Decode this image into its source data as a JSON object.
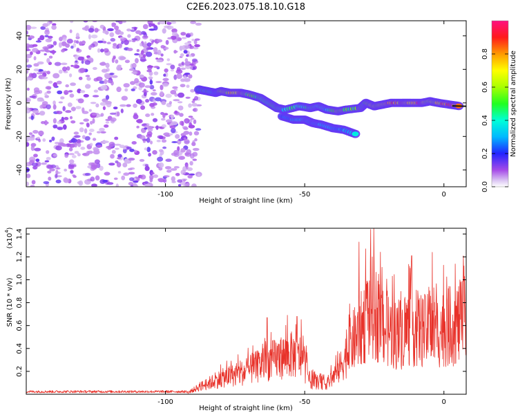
{
  "title": "C2E6.2023.075.18.10.G18",
  "colors": {
    "snr_line": "#e8322a",
    "spectrogram_low": "#8a2be2",
    "spectrogram_high": "#ff2040"
  },
  "chart_data": [
    {
      "type": "heatmap",
      "xlabel": "Height of straight line (km)",
      "ylabel": "Frequency (Hz)",
      "xlim": [
        -150,
        8
      ],
      "ylim": [
        -50,
        49
      ],
      "x_ticks": [
        -100,
        -50,
        0
      ],
      "y_ticks": [
        40,
        20,
        0,
        -20,
        -40
      ],
      "grid": false,
      "ridge": [
        {
          "x": -88,
          "y": 8,
          "v": 0.45
        },
        {
          "x": -85,
          "y": 7,
          "v": 0.5
        },
        {
          "x": -82,
          "y": 6,
          "v": 0.4
        },
        {
          "x": -80,
          "y": 7,
          "v": 0.65
        },
        {
          "x": -77,
          "y": 6,
          "v": 0.7
        },
        {
          "x": -73,
          "y": 6,
          "v": 0.9
        },
        {
          "x": -70,
          "y": 5,
          "v": 0.6
        },
        {
          "x": -66,
          "y": 3,
          "v": 0.45
        },
        {
          "x": -63,
          "y": 0,
          "v": 0.5
        },
        {
          "x": -60,
          "y": -3,
          "v": 0.55
        },
        {
          "x": -57,
          "y": -4,
          "v": 0.4
        },
        {
          "x": -52,
          "y": -2,
          "v": 0.5
        },
        {
          "x": -48,
          "y": -3,
          "v": 0.45
        },
        {
          "x": -45,
          "y": -2,
          "v": 0.5
        },
        {
          "x": -42,
          "y": -4,
          "v": 0.35
        },
        {
          "x": -38,
          "y": -5,
          "v": 0.65
        },
        {
          "x": -35,
          "y": -4,
          "v": 0.55
        },
        {
          "x": -30,
          "y": -3,
          "v": 0.6
        },
        {
          "x": -28,
          "y": 0,
          "v": 0.5
        },
        {
          "x": -25,
          "y": -2,
          "v": 0.7
        },
        {
          "x": -22,
          "y": -1,
          "v": 0.75
        },
        {
          "x": -19,
          "y": 0,
          "v": 0.9
        },
        {
          "x": -15,
          "y": 0,
          "v": 0.85
        },
        {
          "x": -12,
          "y": 0,
          "v": 0.8
        },
        {
          "x": -8,
          "y": 0,
          "v": 0.95
        },
        {
          "x": -5,
          "y": 1,
          "v": 0.7
        },
        {
          "x": -2,
          "y": 0,
          "v": 0.75
        },
        {
          "x": 2,
          "y": -1,
          "v": 0.95
        },
        {
          "x": 6,
          "y": -2,
          "v": 1.0
        }
      ],
      "branch": [
        {
          "x": -58,
          "y": -8,
          "v": 0.3
        },
        {
          "x": -54,
          "y": -10,
          "v": 0.3
        },
        {
          "x": -50,
          "y": -10,
          "v": 0.35
        },
        {
          "x": -47,
          "y": -12,
          "v": 0.3
        },
        {
          "x": -44,
          "y": -13,
          "v": 0.35
        },
        {
          "x": -40,
          "y": -15,
          "v": 0.3
        },
        {
          "x": -36,
          "y": -16,
          "v": 0.3
        },
        {
          "x": -31,
          "y": -19,
          "v": 0.4
        }
      ],
      "colorbar": {
        "label": "Normalized spectral amplitude",
        "range": [
          0.0,
          1.0
        ],
        "ticks": [
          0.0,
          0.2,
          0.4,
          0.6,
          0.8
        ]
      }
    },
    {
      "type": "line",
      "xlabel": "Height of straight line (km)",
      "ylabel": "SNR (10 * v/v)",
      "scale_note": "(x10",
      "scale_exp": "4",
      "scale_close": ")",
      "xlim": [
        -150,
        8
      ],
      "ylim": [
        0,
        1.45
      ],
      "x_ticks": [
        -100,
        -50,
        0
      ],
      "y_ticks": [
        0.2,
        0.4,
        0.6,
        0.8,
        1.0,
        1.2,
        1.4
      ],
      "y_tick_labels": [
        "0.2",
        "0.4",
        "0.6",
        "0.8",
        "1.0",
        "1.2",
        "1.4"
      ],
      "grid": false,
      "envelope": [
        {
          "x": -150,
          "y": 0.02
        },
        {
          "x": -92,
          "y": 0.02
        },
        {
          "x": -88,
          "y": 0.1
        },
        {
          "x": -80,
          "y": 0.22
        },
        {
          "x": -72,
          "y": 0.3
        },
        {
          "x": -65,
          "y": 0.42
        },
        {
          "x": -60,
          "y": 0.5
        },
        {
          "x": -55,
          "y": 0.55
        },
        {
          "x": -51,
          "y": 0.52
        },
        {
          "x": -48,
          "y": 0.18
        },
        {
          "x": -42,
          "y": 0.15
        },
        {
          "x": -38,
          "y": 0.32
        },
        {
          "x": -33,
          "y": 0.72
        },
        {
          "x": -30,
          "y": 0.88
        },
        {
          "x": -26,
          "y": 1.22
        },
        {
          "x": -22,
          "y": 0.95
        },
        {
          "x": -17,
          "y": 0.82
        },
        {
          "x": -12,
          "y": 0.95
        },
        {
          "x": -7,
          "y": 0.88
        },
        {
          "x": -3,
          "y": 0.88
        },
        {
          "x": 2,
          "y": 0.95
        },
        {
          "x": 8,
          "y": 1.03
        }
      ],
      "spikes": [
        {
          "x": -26.3,
          "y": 1.44
        },
        {
          "x": -28.1,
          "y": 1.27
        },
        {
          "x": -30.5,
          "y": 1.33
        },
        {
          "x": -4.2,
          "y": 1.24
        },
        {
          "x": -11.6,
          "y": 1.21
        },
        {
          "x": 8,
          "y": 1.17
        },
        {
          "x": -63.5,
          "y": 0.67
        },
        {
          "x": -56.2,
          "y": 0.69
        },
        {
          "x": -52.8,
          "y": 0.68
        }
      ]
    }
  ]
}
